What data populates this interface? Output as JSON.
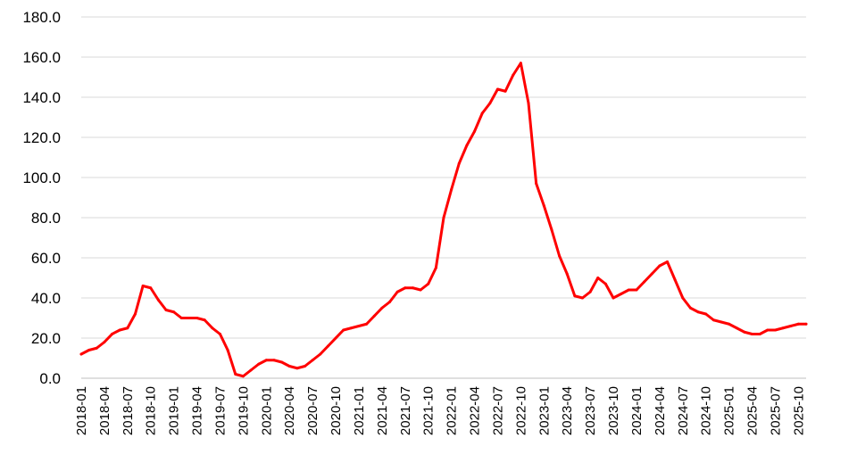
{
  "chart_data": {
    "type": "line",
    "title": "",
    "xlabel": "",
    "ylabel": "",
    "ylim": [
      0,
      180
    ],
    "y_ticks": [
      "0.0",
      "20.0",
      "40.0",
      "60.0",
      "80.0",
      "100.0",
      "120.0",
      "140.0",
      "160.0",
      "180.0"
    ],
    "x_tick_labels": [
      "2018-01",
      "2018-04",
      "2018-07",
      "2018-10",
      "2019-01",
      "2019-04",
      "2019-07",
      "2019-10",
      "2020-01",
      "2020-04",
      "2020-07",
      "2020-10",
      "2021-01",
      "2021-04",
      "2021-07",
      "2021-10",
      "2022-01",
      "2022-04",
      "2022-07",
      "2022-10",
      "2023-01",
      "2023-04",
      "2023-07",
      "2023-10",
      "2024-01",
      "2024-04",
      "2024-07",
      "2024-10",
      "2025-01",
      "2025-04",
      "2025-07",
      "2025-10"
    ],
    "grid": "horizontal",
    "legend": "none",
    "line_color": "#ff0000",
    "grid_color": "#d9d9d9",
    "series": [
      {
        "x": [
          "2018-01",
          "2018-02",
          "2018-03",
          "2018-04",
          "2018-05",
          "2018-06",
          "2018-07",
          "2018-08",
          "2018-09",
          "2018-10",
          "2018-11",
          "2018-12",
          "2019-01",
          "2019-02",
          "2019-03",
          "2019-04",
          "2019-05",
          "2019-06",
          "2019-07",
          "2019-08",
          "2019-09",
          "2019-10",
          "2019-11",
          "2019-12",
          "2020-01",
          "2020-02",
          "2020-03",
          "2020-04",
          "2020-05",
          "2020-06",
          "2020-07",
          "2020-08",
          "2020-09",
          "2020-10",
          "2020-11",
          "2020-12",
          "2021-01",
          "2021-02",
          "2021-03",
          "2021-04",
          "2021-05",
          "2021-06",
          "2021-07",
          "2021-08",
          "2021-09",
          "2021-10",
          "2021-11",
          "2021-12",
          "2022-01",
          "2022-02",
          "2022-03",
          "2022-04",
          "2022-05",
          "2022-06",
          "2022-07",
          "2022-08",
          "2022-09",
          "2022-10",
          "2022-11",
          "2022-12",
          "2023-01",
          "2023-02",
          "2023-03",
          "2023-04",
          "2023-05",
          "2023-06",
          "2023-07",
          "2023-08",
          "2023-09",
          "2023-10",
          "2023-11",
          "2023-12",
          "2024-01",
          "2024-02",
          "2024-03",
          "2024-04",
          "2024-05",
          "2024-06",
          "2024-07",
          "2024-08",
          "2024-09",
          "2024-10",
          "2024-11",
          "2024-12",
          "2025-01",
          "2025-02",
          "2025-03",
          "2025-04",
          "2025-05",
          "2025-06",
          "2025-07",
          "2025-08",
          "2025-09",
          "2025-10",
          "2025-11"
        ],
        "values": [
          12,
          14,
          15,
          18,
          22,
          24,
          25,
          32,
          46,
          45,
          39,
          34,
          33,
          30,
          30,
          30,
          29,
          25,
          22,
          14,
          2,
          1,
          4,
          7,
          9,
          9,
          8,
          6,
          5,
          6,
          9,
          12,
          16,
          20,
          24,
          25,
          26,
          27,
          31,
          35,
          38,
          43,
          45,
          45,
          44,
          47,
          55,
          80,
          94,
          107,
          116,
          123,
          132,
          137,
          144,
          143,
          151,
          157,
          137,
          97,
          86,
          74,
          61,
          52,
          41,
          40,
          43,
          50,
          47,
          40,
          42,
          44,
          44,
          48,
          52,
          56,
          58,
          49,
          40,
          35,
          33,
          32,
          29,
          28,
          27,
          25,
          23,
          22,
          22,
          24,
          24,
          25,
          26,
          27,
          27
        ]
      }
    ]
  }
}
